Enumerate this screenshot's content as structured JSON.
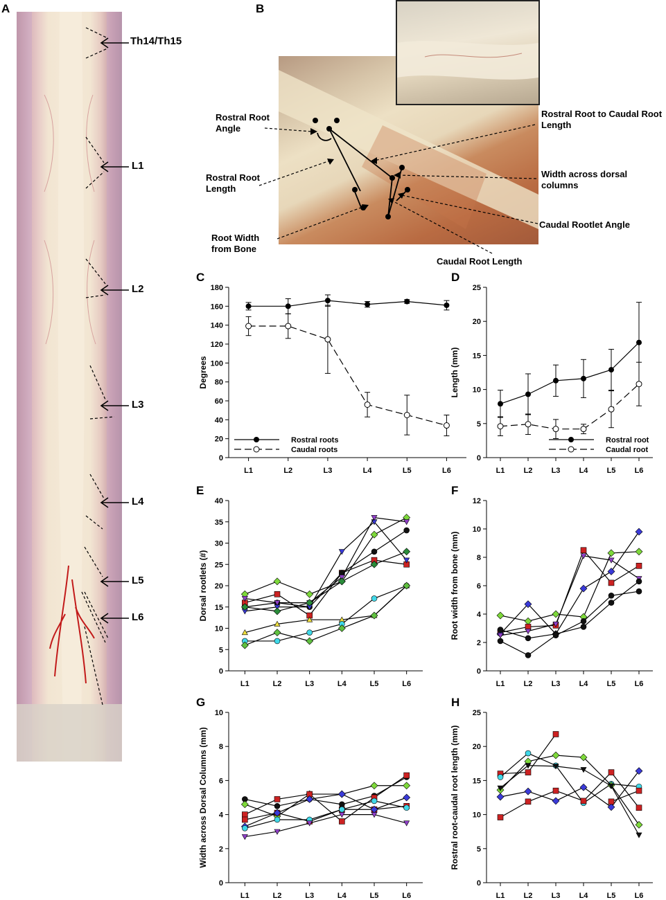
{
  "panel_labels": {
    "A": "A",
    "B": "B",
    "C": "C",
    "D": "D",
    "E": "E",
    "F": "F",
    "G": "G",
    "H": "H"
  },
  "panelA": {
    "labels": [
      "Th14/Th15",
      "L1",
      "L2",
      "L3",
      "L4",
      "L5",
      "L6"
    ]
  },
  "panelB": {
    "annotations": {
      "rostral_root_angle": "Rostral Root Angle",
      "rostral_root_length": "Rostral Root Length",
      "root_width_from_bone": "Root Width from Bone",
      "rostral_to_caudal": "Rostral Root to Caudal Root Length",
      "width_dorsal_columns": "Width across dorsal columns",
      "caudal_rootlet_angle": "Caudal Rootlet Angle",
      "caudal_root_length": "Caudal Root Length"
    }
  },
  "chart_data": [
    {
      "panel": "C",
      "type": "line",
      "categories": [
        "L1",
        "L2",
        "L3",
        "L4",
        "L5",
        "L6"
      ],
      "ylabel": "Degrees",
      "xlabel": "",
      "ylim": [
        0,
        180
      ],
      "yticks": [
        0,
        20,
        40,
        60,
        80,
        100,
        120,
        140,
        160,
        180
      ],
      "legend_position": "bottom-left",
      "series": [
        {
          "name": "Rostral roots",
          "style": "solid",
          "marker": "filled",
          "values": [
            160,
            160,
            166,
            162,
            165,
            161
          ],
          "errors": [
            4,
            8,
            6,
            3,
            2,
            5
          ]
        },
        {
          "name": "Caudal roots",
          "style": "dashed",
          "marker": "open",
          "values": [
            139,
            139,
            125,
            56,
            45,
            34
          ],
          "errors": [
            10,
            13,
            36,
            13,
            21,
            11
          ]
        }
      ]
    },
    {
      "panel": "D",
      "type": "line",
      "categories": [
        "L1",
        "L2",
        "L3",
        "L4",
        "L5",
        "L6"
      ],
      "ylabel": "Length (mm)",
      "xlabel": "",
      "ylim": [
        0,
        25
      ],
      "yticks": [
        0,
        5,
        10,
        15,
        20,
        25
      ],
      "legend_position": "bottom-right",
      "series": [
        {
          "name": "Rostral root",
          "style": "solid",
          "marker": "filled",
          "values": [
            7.9,
            9.3,
            11.3,
            11.6,
            12.9,
            16.9
          ],
          "errors": [
            2.0,
            3.0,
            2.3,
            2.8,
            3.0,
            5.9
          ]
        },
        {
          "name": "Caudal root",
          "style": "dashed",
          "marker": "open",
          "values": [
            4.6,
            4.9,
            4.2,
            4.2,
            7.1,
            10.8
          ],
          "errors": [
            1.4,
            1.5,
            1.4,
            0.7,
            2.7,
            3.2
          ]
        }
      ]
    },
    {
      "panel": "E",
      "type": "line",
      "categories": [
        "L1",
        "L2",
        "L3",
        "L4",
        "L5",
        "L6"
      ],
      "ylabel": "Dorsal rootlets (#)",
      "xlabel": "",
      "ylim": [
        0,
        40
      ],
      "yticks": [
        0,
        5,
        10,
        15,
        20,
        25,
        30,
        35,
        40
      ],
      "series": [
        {
          "color": "#7dd83a",
          "marker": "diamond",
          "values": [
            18,
            21,
            18,
            21,
            32,
            36
          ]
        },
        {
          "color": "#cc2222",
          "marker": "square",
          "values": [
            16,
            18,
            13,
            23,
            26,
            25
          ]
        },
        {
          "color": "#111111",
          "marker": "circle",
          "values": [
            15,
            16,
            15,
            23,
            28,
            33
          ]
        },
        {
          "color": "#3a3ad8",
          "marker": "down",
          "values": [
            14,
            15,
            15,
            28,
            35,
            26
          ]
        },
        {
          "color": "#9040c8",
          "marker": "down",
          "values": [
            17,
            16,
            16,
            22,
            36,
            35
          ]
        },
        {
          "color": "#2a8c3a",
          "marker": "diamond",
          "values": [
            15,
            14,
            16,
            21,
            25,
            28
          ]
        },
        {
          "color": "#f0e040",
          "marker": "up",
          "values": [
            9,
            11,
            12,
            12,
            13,
            20
          ]
        },
        {
          "color": "#40d8e8",
          "marker": "circle",
          "values": [
            7,
            7,
            9,
            11,
            17,
            20
          ]
        },
        {
          "color": "#60c040",
          "marker": "diamond",
          "values": [
            6,
            9,
            7,
            10,
            13,
            20
          ]
        }
      ]
    },
    {
      "panel": "F",
      "type": "line",
      "categories": [
        "L1",
        "L2",
        "L3",
        "L4",
        "L5",
        "L6"
      ],
      "ylabel": "Root width from bone (mm)",
      "xlabel": "",
      "ylim": [
        0,
        12
      ],
      "yticks": [
        0,
        2,
        4,
        6,
        8,
        10,
        12
      ],
      "series": [
        {
          "color": "#7dd83a",
          "marker": "diamond",
          "values": [
            3.9,
            3.5,
            4.0,
            3.8,
            8.3,
            8.4
          ]
        },
        {
          "color": "#cc2222",
          "marker": "square",
          "values": [
            2.7,
            3.1,
            3.2,
            8.5,
            6.2,
            7.4
          ]
        },
        {
          "color": "#3a3ad8",
          "marker": "diamond",
          "values": [
            2.6,
            4.7,
            2.6,
            5.8,
            7.0,
            9.8
          ]
        },
        {
          "color": "#9040c8",
          "marker": "down",
          "values": [
            2.5,
            2.8,
            3.3,
            8.1,
            7.8,
            6.5
          ]
        },
        {
          "color": "#111111",
          "marker": "circle",
          "values": [
            2.9,
            2.3,
            2.6,
            3.1,
            4.8,
            6.3
          ]
        },
        {
          "color": "#111111",
          "marker": "circle",
          "values": [
            2.1,
            1.1,
            2.5,
            3.5,
            5.3,
            5.6
          ]
        }
      ]
    },
    {
      "panel": "G",
      "type": "line",
      "categories": [
        "L1",
        "L2",
        "L3",
        "L4",
        "L5",
        "L6"
      ],
      "ylabel": "Width across Dorsal Columns (mm)",
      "xlabel": "",
      "ylim": [
        0,
        10
      ],
      "yticks": [
        0,
        2,
        4,
        6,
        8,
        10
      ],
      "series": [
        {
          "color": "#111111",
          "marker": "circle",
          "values": [
            4.9,
            4.5,
            4.9,
            4.6,
            5.1,
            6.2
          ]
        },
        {
          "color": "#7dd83a",
          "marker": "diamond",
          "values": [
            4.6,
            3.9,
            5.2,
            5.2,
            5.7,
            5.7
          ]
        },
        {
          "color": "#cc2222",
          "marker": "square",
          "values": [
            4.0,
            4.9,
            5.2,
            3.6,
            5.0,
            6.3
          ]
        },
        {
          "color": "#cc2222",
          "marker": "square",
          "values": [
            3.7,
            4.1,
            3.6,
            4.3,
            4.3,
            4.5
          ]
        },
        {
          "color": "#3a3ad8",
          "marker": "diamond",
          "values": [
            3.3,
            4.1,
            4.9,
            5.2,
            4.3,
            5.0
          ]
        },
        {
          "color": "#40d8e8",
          "marker": "circle",
          "values": [
            3.2,
            3.7,
            3.7,
            4.3,
            4.8,
            4.4
          ]
        },
        {
          "color": "#9040c8",
          "marker": "down",
          "values": [
            2.7,
            3.0,
            3.5,
            4.0,
            4.0,
            3.5
          ]
        }
      ]
    },
    {
      "panel": "H",
      "type": "line",
      "categories": [
        "L1",
        "L2",
        "L3",
        "L4",
        "L5",
        "L6"
      ],
      "ylabel": "Rostral root-caudal root length (mm)",
      "xlabel": "",
      "ylim": [
        0,
        25
      ],
      "yticks": [
        0,
        5,
        10,
        15,
        20,
        25
      ],
      "series": [
        {
          "color": "#cc2222",
          "marker": "square",
          "values": [
            16.0,
            16.2,
            21.8,
            null,
            null,
            null
          ]
        },
        {
          "color": "#40d8e8",
          "marker": "circle",
          "values": [
            15.5,
            19.0,
            17.2,
            11.7,
            14.5,
            14.1
          ]
        },
        {
          "color": "#7dd83a",
          "marker": "diamond",
          "values": [
            13.6,
            17.8,
            18.7,
            18.4,
            14.3,
            8.5
          ]
        },
        {
          "color": "#111111",
          "marker": "down",
          "values": [
            13.9,
            17.2,
            17.1,
            16.6,
            14.2,
            7.0
          ]
        },
        {
          "color": "#3a3ad8",
          "marker": "diamond",
          "values": [
            12.6,
            13.4,
            12.0,
            14.0,
            11.1,
            16.4
          ]
        },
        {
          "color": "#cc2222",
          "marker": "square",
          "values": [
            9.6,
            11.9,
            13.5,
            12.0,
            16.2,
            11.0
          ]
        },
        {
          "color": "#cc2222",
          "marker": "square",
          "values": [
            null,
            null,
            null,
            null,
            11.9,
            13.5
          ]
        }
      ]
    }
  ]
}
